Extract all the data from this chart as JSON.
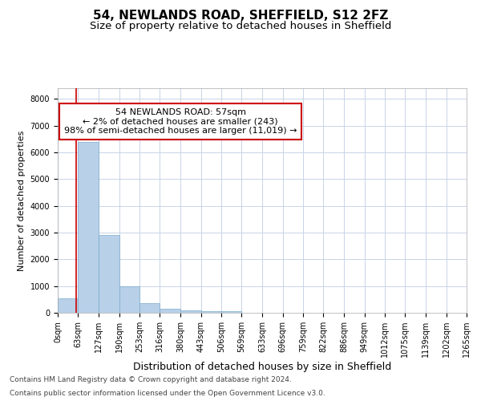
{
  "title1": "54, NEWLANDS ROAD, SHEFFIELD, S12 2FZ",
  "title2": "Size of property relative to detached houses in Sheffield",
  "xlabel": "Distribution of detached houses by size in Sheffield",
  "ylabel": "Number of detached properties",
  "bar_color": "#b8d0e8",
  "bar_edge_color": "#7aaccc",
  "bin_labels": [
    "0sqm",
    "63sqm",
    "127sqm",
    "190sqm",
    "253sqm",
    "316sqm",
    "380sqm",
    "443sqm",
    "506sqm",
    "569sqm",
    "633sqm",
    "696sqm",
    "759sqm",
    "822sqm",
    "886sqm",
    "949sqm",
    "1012sqm",
    "1075sqm",
    "1139sqm",
    "1202sqm",
    "1265sqm"
  ],
  "bin_edges": [
    0,
    63,
    127,
    190,
    253,
    316,
    380,
    443,
    506,
    569,
    633,
    696,
    759,
    822,
    886,
    949,
    1012,
    1075,
    1139,
    1202,
    1265
  ],
  "bar_heights": [
    550,
    6400,
    2920,
    1000,
    360,
    165,
    90,
    75,
    50,
    5,
    3,
    2,
    1,
    1,
    0,
    0,
    0,
    0,
    0,
    0
  ],
  "ylim": [
    0,
    8400
  ],
  "yticks": [
    0,
    1000,
    2000,
    3000,
    4000,
    5000,
    6000,
    7000,
    8000
  ],
  "property_size": 57,
  "red_line_color": "#cc0000",
  "annotation_line1": "54 NEWLANDS ROAD: 57sqm",
  "annotation_line2": "← 2% of detached houses are smaller (243)",
  "annotation_line3": "98% of semi-detached houses are larger (11,019) →",
  "annotation_box_color": "#cc0000",
  "footer_line1": "Contains HM Land Registry data © Crown copyright and database right 2024.",
  "footer_line2": "Contains public sector information licensed under the Open Government Licence v3.0.",
  "background_color": "#ffffff",
  "grid_color": "#c8d4e8",
  "title1_fontsize": 11,
  "title2_fontsize": 9.5,
  "xlabel_fontsize": 9,
  "ylabel_fontsize": 8,
  "tick_fontsize": 7,
  "annotation_fontsize": 8,
  "footer_fontsize": 6.5
}
